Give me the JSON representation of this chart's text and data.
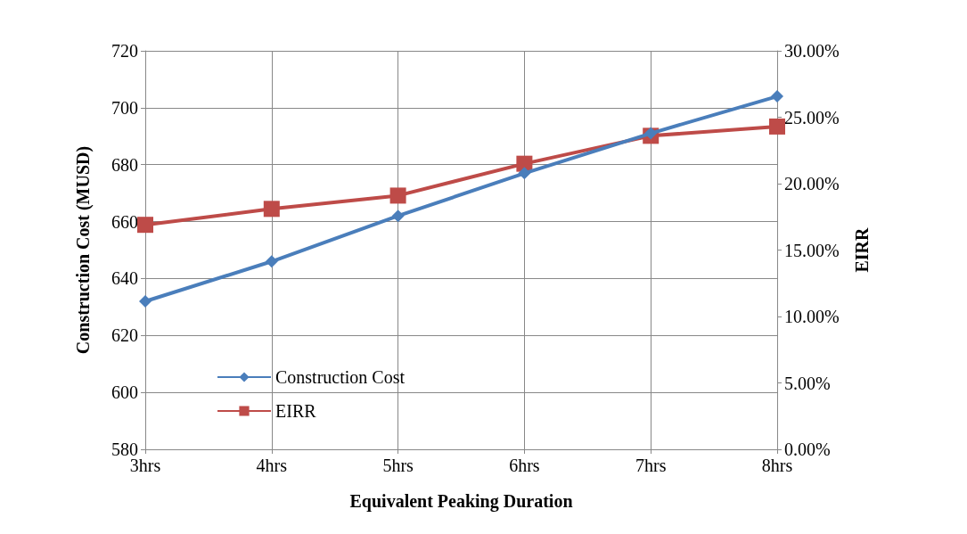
{
  "chart_data": {
    "type": "line",
    "xlabel": "Equivalent Peaking Duration",
    "ylabel": "Construction Cost (MUSD)",
    "y2label": "EIRR",
    "categories": [
      "3hrs",
      "4hrs",
      "5hrs",
      "6hrs",
      "7hrs",
      "8hrs"
    ],
    "series": [
      {
        "name": "Construction Cost",
        "color": "#4a7ebb",
        "marker": "diamond",
        "values": [
          632,
          646,
          662,
          677,
          691,
          704
        ]
      },
      {
        "name": "EIRR",
        "color": "#be4b48",
        "marker": "square",
        "axis": "y2",
        "values": [
          16.9,
          18.1,
          19.1,
          21.5,
          23.6,
          24.3
        ]
      }
    ],
    "ylim": [
      580,
      720
    ],
    "yticks": [
      580,
      600,
      620,
      640,
      660,
      680,
      700,
      720
    ],
    "y2lim": [
      0,
      30
    ],
    "y2ticks": [
      {
        "value": 0,
        "label": "0.00%"
      },
      {
        "value": 5,
        "label": "5.00%"
      },
      {
        "value": 10,
        "label": "10.00%"
      },
      {
        "value": 15,
        "label": "15.00%"
      },
      {
        "value": 20,
        "label": "20.00%"
      },
      {
        "value": 25,
        "label": "25.00%"
      },
      {
        "value": 30,
        "label": "30.00%"
      }
    ],
    "grid": true,
    "legend": "bottom left"
  }
}
